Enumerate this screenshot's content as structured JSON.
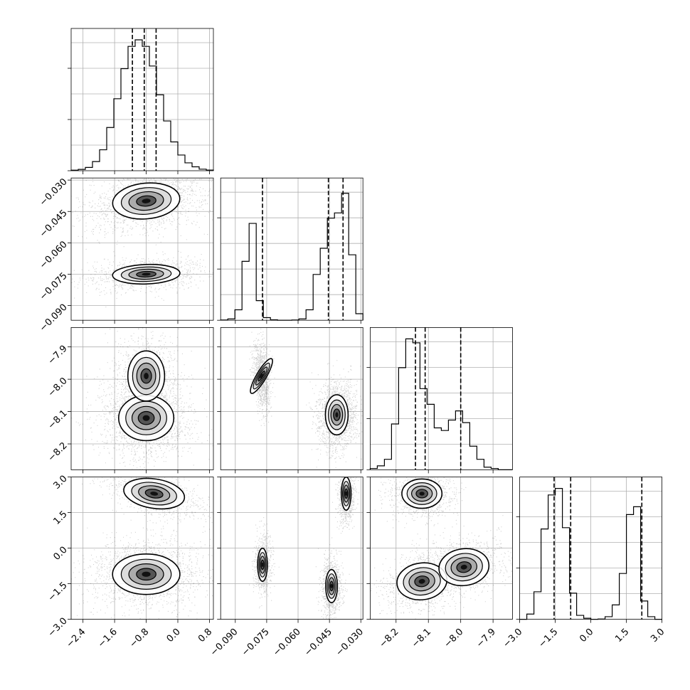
{
  "chart_data": {
    "type": "corner",
    "description_style": "corner plot of 4 parameters: 1D histograms on diagonal with dashed quantile lines, 2D scatter+density contours below diagonal",
    "parameters": [
      {
        "index": 0,
        "range": [
          -2.7,
          0.9
        ],
        "ticks": [
          "−2.4",
          "−1.6",
          "−0.8",
          "0.0",
          "0.8"
        ],
        "tick_values": [
          -2.4,
          -1.6,
          -0.8,
          0.0,
          0.8
        ],
        "quantiles": [
          -1.15,
          -0.85,
          -0.55
        ],
        "hist_bins": [
          0.004,
          0.01,
          0.025,
          0.07,
          0.16,
          0.33,
          0.55,
          0.78,
          0.95,
          1.0,
          0.95,
          0.8,
          0.58,
          0.38,
          0.22,
          0.12,
          0.06,
          0.03,
          0.012,
          0.005
        ]
      },
      {
        "index": 1,
        "range": [
          -0.097,
          -0.029
        ],
        "ticks": [
          "−0.030",
          "−0.045",
          "−0.060",
          "−0.075",
          "−0.090"
        ],
        "tick_values": [
          -0.03,
          -0.045,
          -0.06,
          -0.075,
          -0.09
        ],
        "quantiles": [
          -0.077,
          -0.0455,
          -0.0385
        ],
        "hist_bins": [
          0.002,
          0.01,
          0.08,
          0.45,
          0.74,
          0.15,
          0.02,
          0.003,
          0.0,
          0.0,
          0.002,
          0.01,
          0.08,
          0.35,
          0.55,
          0.78,
          0.82,
          0.97,
          0.5,
          0.05
        ]
      },
      {
        "index": 2,
        "range": [
          -8.28,
          -7.84
        ],
        "ticks": [
          "−8.2",
          "−8.1",
          "−8.0",
          "−7.9"
        ],
        "tick_values": [
          -8.2,
          -8.1,
          -8.0,
          -7.9
        ],
        "quantiles": [
          -8.14,
          -8.11,
          -8.0
        ],
        "hist_bins": [
          0.01,
          0.03,
          0.08,
          0.35,
          0.78,
          1.0,
          0.97,
          0.62,
          0.5,
          0.32,
          0.3,
          0.38,
          0.45,
          0.36,
          0.18,
          0.08,
          0.02,
          0.01,
          0.0,
          0.0
        ]
      },
      {
        "index": 3,
        "range": [
          -3.0,
          3.0
        ],
        "ticks": [
          "−3.0",
          "−1.5",
          "0.0",
          "1.5",
          "3.0"
        ],
        "tick_values": [
          -3.0,
          -1.5,
          0.0,
          1.5,
          3.0
        ],
        "quantiles": [
          -1.55,
          -0.85,
          2.15
        ],
        "hist_bins": [
          0.0,
          0.04,
          0.21,
          0.69,
          0.95,
          1.0,
          0.7,
          0.2,
          0.03,
          0.008,
          0.0,
          0.002,
          0.02,
          0.11,
          0.35,
          0.8,
          0.86,
          0.14,
          0.02,
          0.0
        ]
      }
    ],
    "pair_blobs": {
      "1-0": [
        {
          "cx": -0.8,
          "cy": -0.04,
          "sx": 0.55,
          "sy": 0.0055,
          "rho": 0.3,
          "w": 0.66
        },
        {
          "cx": -0.8,
          "cy": -0.075,
          "sx": 0.55,
          "sy": 0.003,
          "rho": 0.2,
          "w": 0.34
        }
      ],
      "2-0": [
        {
          "cx": -0.8,
          "cy": -8.12,
          "sx": 0.45,
          "sy": 0.045,
          "rho": 0.0,
          "w": 0.64
        },
        {
          "cx": -0.8,
          "cy": -7.99,
          "sx": 0.3,
          "sy": 0.05,
          "rho": 0.0,
          "w": 0.36
        }
      ],
      "2-1": [
        {
          "cx": -0.0775,
          "cy": -7.99,
          "sx": 0.0015,
          "sy": 0.04,
          "rho": -0.3,
          "w": 0.36
        },
        {
          "cx": -0.0415,
          "cy": -8.11,
          "sx": 0.0035,
          "sy": 0.04,
          "rho": 0.0,
          "w": 0.64
        }
      ],
      "3-0": [
        {
          "cx": -0.6,
          "cy": 2.3,
          "sx": 0.5,
          "sy": 0.4,
          "rho": -0.55,
          "w": 0.34
        },
        {
          "cx": -0.8,
          "cy": -1.1,
          "sx": 0.55,
          "sy": 0.55,
          "rho": 0.0,
          "w": 0.66
        }
      ],
      "3-1": [
        {
          "cx": -0.037,
          "cy": 2.3,
          "sx": 0.0015,
          "sy": 0.45,
          "rho": 0.0,
          "w": 0.34
        },
        {
          "cx": -0.077,
          "cy": -0.7,
          "sx": 0.0015,
          "sy": 0.45,
          "rho": 0.0,
          "w": 0.3
        },
        {
          "cx": -0.044,
          "cy": -1.6,
          "sx": 0.0018,
          "sy": 0.45,
          "rho": 0.0,
          "w": 0.36
        }
      ],
      "3-2": [
        {
          "cx": -8.12,
          "cy": 2.3,
          "sx": 0.04,
          "sy": 0.4,
          "rho": 0.0,
          "w": 0.34
        },
        {
          "cx": -8.12,
          "cy": -1.4,
          "sx": 0.05,
          "sy": 0.5,
          "rho": 0.3,
          "w": 0.36
        },
        {
          "cx": -7.99,
          "cy": -0.8,
          "sx": 0.05,
          "sy": 0.5,
          "rho": 0.3,
          "w": 0.3
        }
      ]
    },
    "grid": true,
    "xlabel": "",
    "ylabel": "",
    "title": ""
  }
}
